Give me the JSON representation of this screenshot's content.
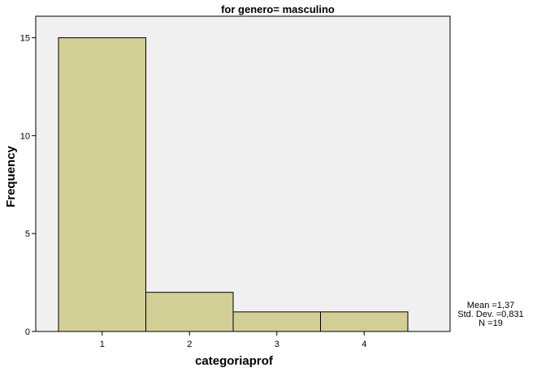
{
  "chart_data": {
    "type": "bar",
    "title": "for genero= masculino",
    "xlabel": "categoriaprof",
    "ylabel": "Frequency",
    "categories": [
      "1",
      "2",
      "3",
      "4"
    ],
    "values": [
      15,
      2,
      1,
      1
    ],
    "ylim": [
      0,
      16.1
    ],
    "yticks": [
      0,
      5,
      10,
      15
    ],
    "grid": false,
    "legend": "none",
    "colors": {
      "bar": "#d3ce96",
      "plot_background": "#f0f0f0",
      "outline": "#000000"
    },
    "stats": {
      "mean": "Mean =1,37",
      "std_dev": "Std. Dev. =0,831",
      "n": "N =19"
    }
  }
}
